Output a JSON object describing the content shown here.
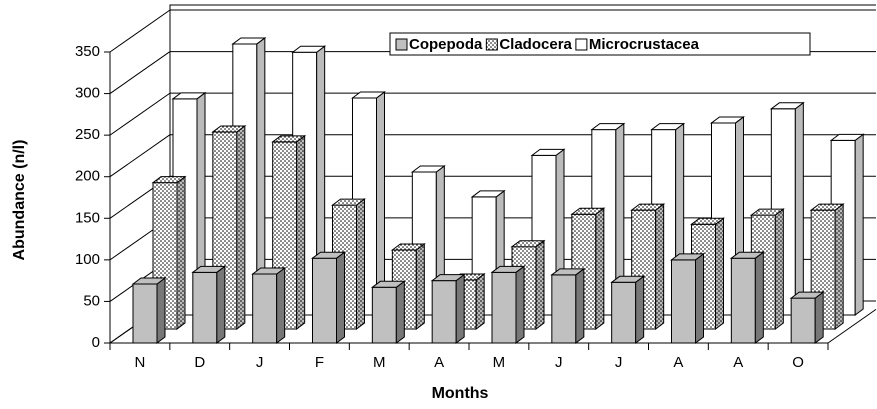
{
  "chart_data": {
    "type": "bar3d",
    "x_label": "Months",
    "y_label": "Abundance (n/l)",
    "categories": [
      "N",
      "D",
      "J",
      "F",
      "M",
      "A",
      "M",
      "J",
      "J",
      "A",
      "A",
      "O"
    ],
    "series": [
      {
        "name": "Copepoda",
        "color": "#c0c0c0",
        "values": [
          71,
          85,
          83,
          102,
          67,
          75,
          85,
          82,
          73,
          100,
          102,
          54
        ]
      },
      {
        "name": "Cladocera",
        "color": "#ffffff",
        "pattern": "dotted",
        "values": [
          176,
          237,
          225,
          149,
          95,
          59,
          99,
          138,
          143,
          126,
          137,
          143
        ]
      },
      {
        "name": "Microcrustacea",
        "color": "#ffffff",
        "values": [
          260,
          326,
          316,
          261,
          172,
          142,
          192,
          223,
          223,
          231,
          248,
          210
        ]
      }
    ],
    "ylim": [
      0,
      350
    ],
    "yticks": [
      0,
      50,
      100,
      150,
      200,
      250,
      300,
      350
    ],
    "grid": true,
    "legend": "top right"
  }
}
